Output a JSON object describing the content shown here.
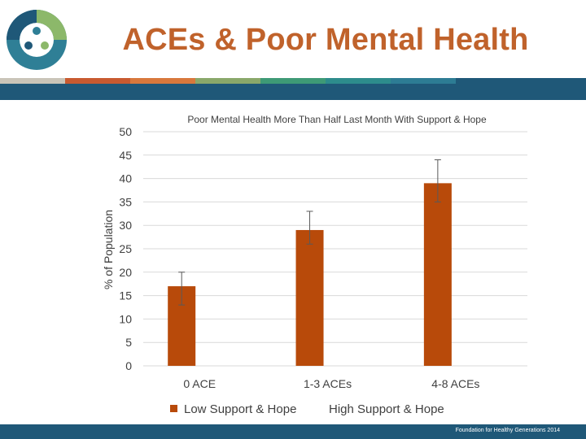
{
  "slide": {
    "title": "ACEs & Poor Mental Health",
    "footer": "Foundation for Healthy Generations 2014"
  },
  "colors": {
    "title": "#c0622b",
    "band": "#1f5878",
    "bar_low": "#b84a0a",
    "stripe": [
      "#c9c4b8",
      "#c85a30",
      "#d8783c",
      "#8aa86a",
      "#3e9a76",
      "#2d8c8c",
      "#2d7c94",
      "#1f5878",
      "#1f5878"
    ]
  },
  "logo": {
    "icon": "people-circle-logo-icon"
  },
  "chart_data": {
    "type": "bar",
    "title": "Poor Mental Health More Than Half Last Month With Support & Hope",
    "xlabel": "",
    "ylabel": "% of Population",
    "ylim": [
      0,
      50
    ],
    "yticks": [
      0,
      5,
      10,
      15,
      20,
      25,
      30,
      35,
      40,
      45,
      50
    ],
    "grid": true,
    "legend_position": "bottom",
    "categories": [
      "0 ACE",
      "1-3 ACEs",
      "4-8 ACEs"
    ],
    "series": [
      {
        "name": "Low Support & Hope",
        "values": [
          17,
          29,
          39
        ],
        "error_low": [
          13,
          26,
          35
        ],
        "error_high": [
          20,
          33,
          44
        ]
      },
      {
        "name": "High Support & Hope",
        "values": [
          null,
          null,
          null
        ]
      }
    ]
  }
}
